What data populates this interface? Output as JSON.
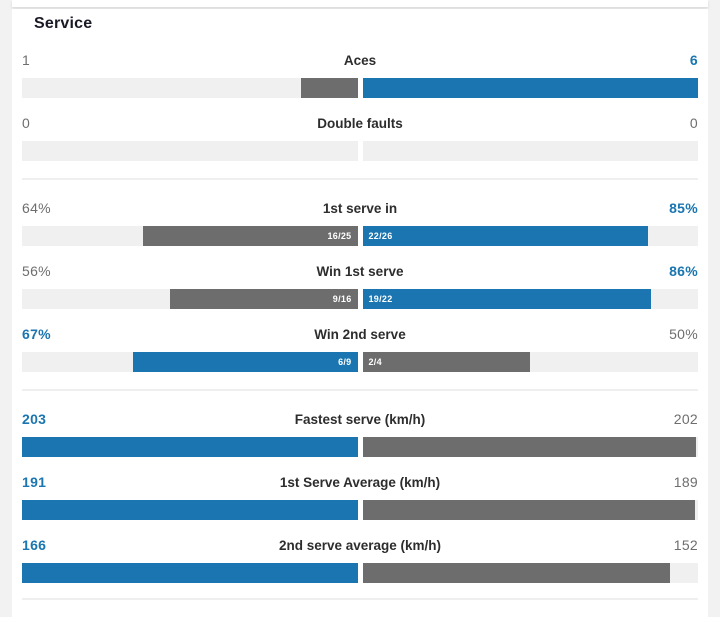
{
  "header": {
    "title": "Service"
  },
  "colors": {
    "page_bg": "#f2f2f2",
    "card_bg": "#ffffff",
    "track": "#f0f0f0",
    "bar_blue": "#1a75b0",
    "bar_gray": "#6d6d6d",
    "value_muted": "#6e6e6e",
    "label_text": "#2d2d2d",
    "title_text": "#1a1a26",
    "divider": "#efefef",
    "bar_label_text": "#ffffff"
  },
  "chart_data": {
    "type": "bar",
    "title": "Service",
    "layout": "paired horizontal comparison bars anchored at center; left player vs right player; winning side shown in blue with bold blue value, losing side in gray",
    "groups": [
      {
        "rows": [
          {
            "label": "Aces",
            "left": {
              "value": "1",
              "numeric": 1,
              "bar_pct": 16.7,
              "bar_color": "gray",
              "bar_label": "",
              "highlight": false
            },
            "right": {
              "value": "6",
              "numeric": 6,
              "bar_pct": 100,
              "bar_color": "blue",
              "bar_label": "",
              "highlight": true
            }
          },
          {
            "label": "Double faults",
            "left": {
              "value": "0",
              "numeric": 0,
              "bar_pct": 0,
              "bar_color": "none",
              "bar_label": "",
              "highlight": false
            },
            "right": {
              "value": "0",
              "numeric": 0,
              "bar_pct": 0,
              "bar_color": "none",
              "bar_label": "",
              "highlight": false
            }
          }
        ]
      },
      {
        "rows": [
          {
            "label": "1st serve in",
            "left": {
              "value": "64%",
              "numeric": 64,
              "bar_pct": 64,
              "bar_color": "gray",
              "bar_label": "16/25",
              "highlight": false
            },
            "right": {
              "value": "85%",
              "numeric": 85,
              "bar_pct": 85,
              "bar_color": "blue",
              "bar_label": "22/26",
              "highlight": true
            }
          },
          {
            "label": "Win 1st serve",
            "left": {
              "value": "56%",
              "numeric": 56,
              "bar_pct": 56,
              "bar_color": "gray",
              "bar_label": "9/16",
              "highlight": false
            },
            "right": {
              "value": "86%",
              "numeric": 86,
              "bar_pct": 86,
              "bar_color": "blue",
              "bar_label": "19/22",
              "highlight": true
            }
          },
          {
            "label": "Win 2nd serve",
            "left": {
              "value": "67%",
              "numeric": 67,
              "bar_pct": 67,
              "bar_color": "blue",
              "bar_label": "6/9",
              "highlight": true
            },
            "right": {
              "value": "50%",
              "numeric": 50,
              "bar_pct": 50,
              "bar_color": "gray",
              "bar_label": "2/4",
              "highlight": false
            }
          }
        ]
      },
      {
        "rows": [
          {
            "label": "Fastest serve (km/h)",
            "left": {
              "value": "203",
              "numeric": 203,
              "bar_pct": 100,
              "bar_color": "blue",
              "bar_label": "",
              "highlight": true
            },
            "right": {
              "value": "202",
              "numeric": 202,
              "bar_pct": 99.5,
              "bar_color": "gray",
              "bar_label": "",
              "highlight": false
            }
          },
          {
            "label": "1st Serve Average (km/h)",
            "left": {
              "value": "191",
              "numeric": 191,
              "bar_pct": 100,
              "bar_color": "blue",
              "bar_label": "",
              "highlight": true
            },
            "right": {
              "value": "189",
              "numeric": 189,
              "bar_pct": 99,
              "bar_color": "gray",
              "bar_label": "",
              "highlight": false
            }
          },
          {
            "label": "2nd serve average (km/h)",
            "left": {
              "value": "166",
              "numeric": 166,
              "bar_pct": 100,
              "bar_color": "blue",
              "bar_label": "",
              "highlight": true
            },
            "right": {
              "value": "152",
              "numeric": 152,
              "bar_pct": 91.6,
              "bar_color": "gray",
              "bar_label": "",
              "highlight": false
            }
          }
        ]
      }
    ]
  }
}
